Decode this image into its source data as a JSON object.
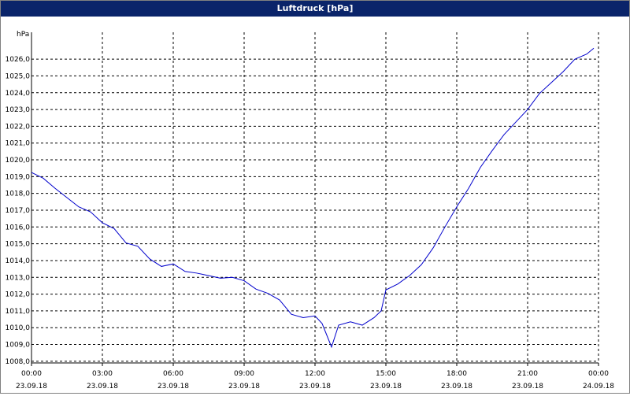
{
  "chart_data": {
    "type": "line",
    "title": "Luftdruck [hPa]",
    "y_label": "hPa",
    "x": [
      0,
      0.5,
      1,
      1.5,
      2,
      2.5,
      3,
      3.5,
      4,
      4.5,
      5,
      5.5,
      6,
      6.5,
      7,
      7.5,
      8,
      8.5,
      9,
      9.5,
      10,
      10.5,
      11,
      11.5,
      12,
      12.3,
      12.7,
      13,
      13.5,
      14,
      14.5,
      14.8,
      15,
      15.5,
      16,
      16.5,
      17,
      17.5,
      18,
      18.5,
      19,
      19.5,
      20,
      20.5,
      21,
      21.5,
      22,
      22.5,
      23,
      23.5,
      23.8
    ],
    "series": [
      {
        "name": "Luftdruck",
        "color": "#0000cc",
        "values": [
          1019.25,
          1018.9,
          1018.3,
          1017.75,
          1017.2,
          1016.9,
          1016.25,
          1015.9,
          1015.05,
          1014.85,
          1014.1,
          1013.65,
          1013.8,
          1013.35,
          1013.25,
          1013.1,
          1012.95,
          1013.0,
          1012.8,
          1012.3,
          1012.05,
          1011.65,
          1010.8,
          1010.6,
          1010.7,
          1010.25,
          1008.85,
          1010.15,
          1010.35,
          1010.15,
          1010.6,
          1011.0,
          1012.25,
          1012.6,
          1013.1,
          1013.75,
          1014.75,
          1016.0,
          1017.2,
          1018.3,
          1019.55,
          1020.55,
          1021.5,
          1022.25,
          1023.0,
          1023.95,
          1024.6,
          1025.25,
          1026.0,
          1026.3,
          1026.65
        ]
      }
    ],
    "xlim": [
      0,
      24
    ],
    "xticks": [
      {
        "value": 0,
        "label": "00:00"
      },
      {
        "value": 3,
        "label": "03:00"
      },
      {
        "value": 6,
        "label": "06:00"
      },
      {
        "value": 9,
        "label": "09:00"
      },
      {
        "value": 12,
        "label": "12:00"
      },
      {
        "value": 15,
        "label": "15:00"
      },
      {
        "value": 18,
        "label": "18:00"
      },
      {
        "value": 21,
        "label": "21:00"
      },
      {
        "value": 24,
        "label": "00:00"
      }
    ],
    "xtick_dates": [
      "23.09.18",
      "23.09.18",
      "23.09.18",
      "23.09.18",
      "23.09.18",
      "23.09.18",
      "23.09.18",
      "23.09.18",
      "24.09.18"
    ],
    "ylim": [
      1007.9,
      1027.6
    ],
    "yticks": [
      {
        "value": 1008,
        "label": "1008,0"
      },
      {
        "value": 1009,
        "label": "1009,0"
      },
      {
        "value": 1010,
        "label": "1010,0"
      },
      {
        "value": 1011,
        "label": "1011,0"
      },
      {
        "value": 1012,
        "label": "1012,0"
      },
      {
        "value": 1013,
        "label": "1013,0"
      },
      {
        "value": 1014,
        "label": "1014,0"
      },
      {
        "value": 1015,
        "label": "1015,0"
      },
      {
        "value": 1016,
        "label": "1016,0"
      },
      {
        "value": 1017,
        "label": "1017,0"
      },
      {
        "value": 1018,
        "label": "1018,0"
      },
      {
        "value": 1019,
        "label": "1019,0"
      },
      {
        "value": 1020,
        "label": "1020,0"
      },
      {
        "value": 1021,
        "label": "1021,0"
      },
      {
        "value": 1022,
        "label": "1022,0"
      },
      {
        "value": 1023,
        "label": "1023,0"
      },
      {
        "value": 1024,
        "label": "1024,0"
      },
      {
        "value": 1025,
        "label": "1025,0"
      },
      {
        "value": 1026,
        "label": "1026,0"
      }
    ],
    "grid": true
  }
}
